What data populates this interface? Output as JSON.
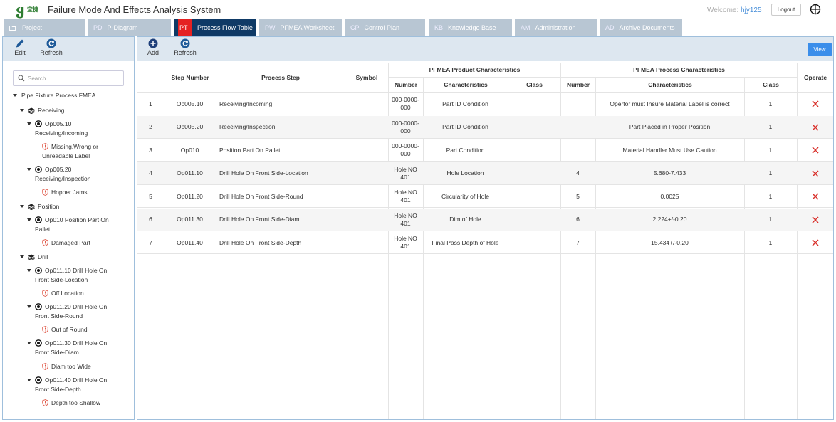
{
  "app": {
    "logo_text": "宝捷",
    "title": "Failure Mode And Effects Analysis System",
    "welcome_label": "Welcome:",
    "username": "hjy125",
    "logout_label": "Logout"
  },
  "tabs": [
    {
      "code": "",
      "label": "Project",
      "icon": "folder-icon"
    },
    {
      "code": "PD",
      "label": "P-Diagram"
    },
    {
      "code": "PT",
      "label": "Process Flow Table",
      "active": true
    },
    {
      "code": "PW",
      "label": "PFMEA Worksheet"
    },
    {
      "code": "CP",
      "label": "Control Plan"
    },
    {
      "code": "KB",
      "label": "Knowledge Base"
    },
    {
      "code": "AM",
      "label": "Administration"
    },
    {
      "code": "AD",
      "label": "Archive Documents"
    }
  ],
  "left_toolbar": {
    "edit_label": "Edit",
    "refresh_label": "Refresh"
  },
  "search": {
    "placeholder": "Search"
  },
  "tree": {
    "root": "Pipe Fixture Process FMEA",
    "groups": [
      {
        "label": "Receiving",
        "ops": [
          {
            "label": "Op005.10 Receiving/Incoming",
            "failures": [
              "Missing,Wrong or Unreadable Label"
            ]
          },
          {
            "label": "Op005.20 Receiving/Inspection",
            "failures": [
              "Hopper Jams"
            ]
          }
        ]
      },
      {
        "label": "Position",
        "ops": [
          {
            "label": "Op010 Position Part On Pallet",
            "failures": [
              "Damaged Part"
            ]
          }
        ]
      },
      {
        "label": "Drill",
        "ops": [
          {
            "label": "Op011.10 Drill Hole On Front Side-Location",
            "failures": [
              "Off Location"
            ]
          },
          {
            "label": "Op011.20 Drill Hole On Front Side-Round",
            "failures": [
              "Out of Round"
            ]
          },
          {
            "label": "Op011.30 Drill Hole On Front Side-Diam",
            "failures": [
              "Diam too Wide"
            ]
          },
          {
            "label": "Op011.40 Drill Hole On Front Side-Depth",
            "failures": [
              "Depth too Shallow"
            ]
          }
        ]
      }
    ]
  },
  "right_toolbar": {
    "add_label": "Add",
    "refresh_label": "Refresh",
    "view_label": "View"
  },
  "table": {
    "headers": {
      "step_number": "Step Number",
      "process_step": "Process Step",
      "symbol": "Symbol",
      "product_group": "PFMEA Product Characteristics",
      "process_group": "PFMEA Process Characteristics",
      "operate": "Operate",
      "number": "Number",
      "characteristics": "Characteristics",
      "class": "Class"
    },
    "rows": [
      {
        "idx": "1",
        "step": "Op005.10",
        "process": "Receiving/Incoming",
        "symbol": "",
        "prod_number": "000-0000-000",
        "prod_char": "Part ID Condition",
        "prod_class": "",
        "proc_number": "",
        "proc_char": "Opertor must Insure Material Label is correct",
        "proc_class": "1"
      },
      {
        "idx": "2",
        "step": "Op005.20",
        "process": "Receiving/Inspection",
        "symbol": "",
        "prod_number": "000-0000-000",
        "prod_char": "Part ID Condition",
        "prod_class": "",
        "proc_number": "",
        "proc_char": "Part Placed in Proper Position",
        "proc_class": "1"
      },
      {
        "idx": "3",
        "step": "Op010",
        "process": "Position Part On Pallet",
        "symbol": "",
        "prod_number": "000-0000-000",
        "prod_char": "Part Condition",
        "prod_class": "",
        "proc_number": "",
        "proc_char": "Material Handler Must Use Caution",
        "proc_class": "1"
      },
      {
        "idx": "4",
        "step": "Op011.10",
        "process": "Drill Hole On Front Side-Location",
        "symbol": "",
        "prod_number": "Hole NO 401",
        "prod_char": "Hole Location",
        "prod_class": "",
        "proc_number": "4",
        "proc_char": "5.680-7.433",
        "proc_class": "1"
      },
      {
        "idx": "5",
        "step": "Op011.20",
        "process": "Drill Hole On Front Side-Round",
        "symbol": "",
        "prod_number": "Hole NO 401",
        "prod_char": "Circularity of Hole",
        "prod_class": "",
        "proc_number": "5",
        "proc_char": "0.0025",
        "proc_class": "1"
      },
      {
        "idx": "6",
        "step": "Op011.30",
        "process": "Drill Hole On Front Side-Diam",
        "symbol": "",
        "prod_number": "Hole NO 401",
        "prod_char": "Dim of Hole",
        "prod_class": "",
        "proc_number": "6",
        "proc_char": "2.224+/-0.20",
        "proc_class": "1"
      },
      {
        "idx": "7",
        "step": "Op011.40",
        "process": "Drill Hole On Front Side-Depth",
        "symbol": "",
        "prod_number": "Hole NO 401",
        "prod_char": "Final Pass Depth of Hole",
        "prod_class": "",
        "proc_number": "7",
        "proc_char": "15.434+/-0.20",
        "proc_class": "1"
      }
    ]
  },
  "colors": {
    "active_tab": "#0f3a66",
    "active_tab_code": "#e52222",
    "tab": "#b8c6d3",
    "toolbar": "#dde7f0",
    "delete": "#d9302b",
    "view_button": "#3b8eea"
  }
}
